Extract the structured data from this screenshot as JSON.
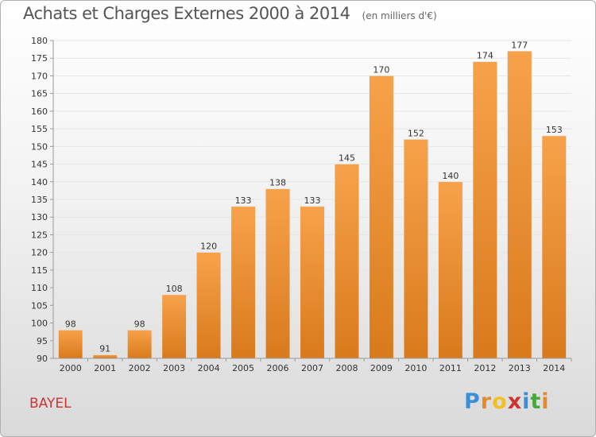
{
  "header": {
    "title": "Achats et Charges Externes 2000 à 2014",
    "unit": "(en milliers d'€)"
  },
  "footer": {
    "place": "BAYEL",
    "logo": "Proxiti",
    "logo_colors": [
      "#3a8fd8",
      "#e8892b",
      "#f4c020",
      "#cc3333",
      "#3a8fd8",
      "#49a83d",
      "#e8892b"
    ]
  },
  "colors": {
    "bar_top": "#f7a24b",
    "bar_bottom": "#d97a1c",
    "place": "#cc3333"
  },
  "chart_data": {
    "type": "bar",
    "title": "Achats et Charges Externes 2000 à 2014",
    "subtitle": "(en milliers d'€)",
    "xlabel": "",
    "ylabel": "",
    "categories": [
      "2000",
      "2001",
      "2002",
      "2003",
      "2004",
      "2005",
      "2006",
      "2007",
      "2008",
      "2009",
      "2010",
      "2011",
      "2012",
      "2013",
      "2014"
    ],
    "values": [
      98,
      91,
      98,
      108,
      120,
      133,
      138,
      133,
      145,
      170,
      152,
      140,
      174,
      177,
      153
    ],
    "ylim": [
      90,
      180
    ],
    "ytick_step": 5,
    "grid": true,
    "legend": "none"
  }
}
